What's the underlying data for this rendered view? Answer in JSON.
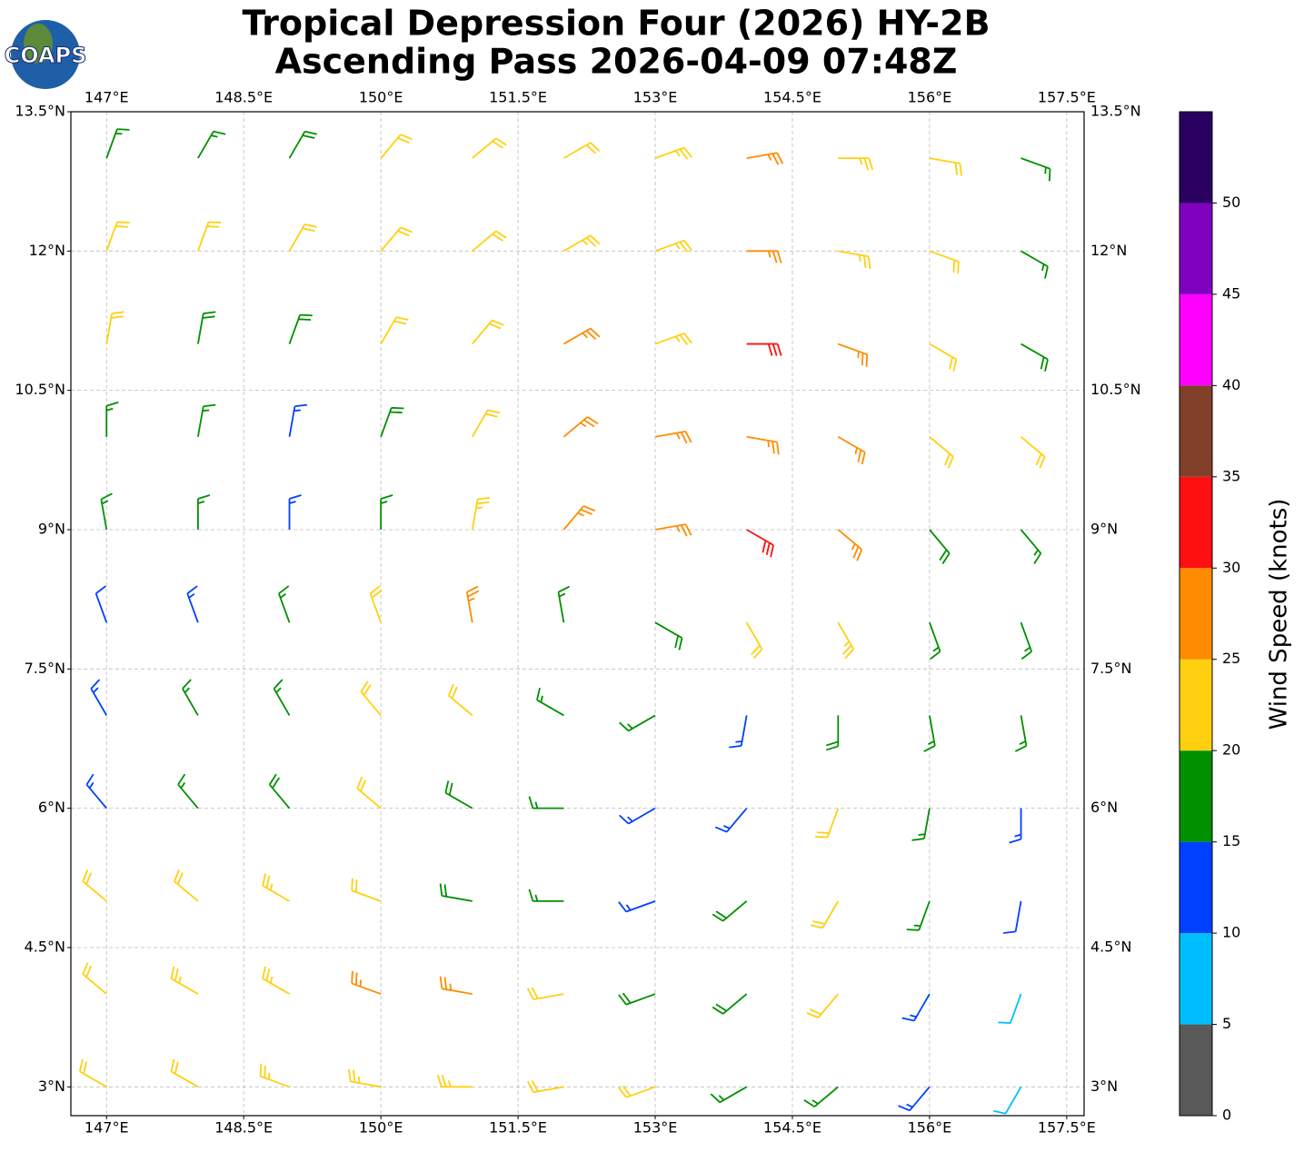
{
  "logo": "COAPS",
  "chart_data": {
    "type": "barbs",
    "title": "Tropical Depression Four (2026) HY-2B",
    "subtitle": "Ascending Pass 2026-04-09 07:48Z",
    "xlim": [
      146.61,
      157.69
    ],
    "ylim": [
      2.69,
      13.5
    ],
    "xticks": [
      {
        "value": 147,
        "label": "147°E"
      },
      {
        "value": 148.5,
        "label": "148.5°E"
      },
      {
        "value": 150,
        "label": "150°E"
      },
      {
        "value": 151.5,
        "label": "151.5°E"
      },
      {
        "value": 153,
        "label": "153°E"
      },
      {
        "value": 154.5,
        "label": "154.5°E"
      },
      {
        "value": 156,
        "label": "156°E"
      },
      {
        "value": 157.5,
        "label": "157.5°E"
      }
    ],
    "yticks": [
      {
        "value": 3,
        "label": "3°N"
      },
      {
        "value": 4.5,
        "label": "4.5°N"
      },
      {
        "value": 6,
        "label": "6°N"
      },
      {
        "value": 7.5,
        "label": "7.5°N"
      },
      {
        "value": 9,
        "label": "9°N"
      },
      {
        "value": 10.5,
        "label": "10.5°N"
      },
      {
        "value": 12,
        "label": "12°N"
      },
      {
        "value": 13.5,
        "label": "13.5°N"
      }
    ],
    "grid": true,
    "lon": [
      147,
      148,
      149,
      150,
      151,
      152,
      153,
      154,
      155,
      156,
      157
    ],
    "lat": [
      13,
      12,
      11,
      10,
      9,
      8,
      7,
      6,
      5,
      4,
      3
    ],
    "speed": [
      [
        17,
        17,
        18,
        22,
        22,
        22,
        23,
        26,
        24,
        20,
        16
      ],
      [
        22,
        21,
        20,
        22,
        22,
        23,
        24,
        26,
        24,
        20,
        17
      ],
      [
        20,
        19,
        18,
        21,
        22,
        25,
        24,
        30,
        26,
        22,
        18
      ],
      [
        17,
        16,
        14,
        19,
        22,
        27,
        26,
        25,
        27,
        22,
        21
      ],
      [
        17,
        15,
        13,
        16,
        24,
        27,
        25,
        30,
        26,
        18,
        17
      ],
      [
        12,
        14,
        15,
        20,
        25,
        17,
        18,
        20,
        23,
        17,
        16
      ],
      [
        13,
        15,
        17,
        21,
        21,
        17,
        16,
        14,
        18,
        16,
        15
      ],
      [
        14,
        17,
        19,
        22,
        18,
        16,
        13,
        14,
        20,
        17,
        13
      ],
      [
        22,
        21,
        23,
        21,
        19,
        16,
        14,
        18,
        20,
        16,
        10
      ],
      [
        22,
        23,
        24,
        27,
        25,
        22,
        19,
        18,
        21,
        13,
        8
      ],
      [
        21,
        22,
        23,
        24,
        23,
        22,
        20,
        17,
        16,
        13,
        8
      ]
    ],
    "direction": [
      [
        20,
        30,
        30,
        40,
        50,
        60,
        70,
        80,
        90,
        100,
        110
      ],
      [
        20,
        20,
        30,
        40,
        50,
        60,
        70,
        90,
        100,
        110,
        120
      ],
      [
        10,
        10,
        20,
        30,
        40,
        60,
        70,
        90,
        110,
        120,
        120
      ],
      [
        0,
        10,
        10,
        20,
        30,
        50,
        80,
        100,
        120,
        130,
        130
      ],
      [
        350,
        0,
        0,
        0,
        10,
        40,
        80,
        120,
        130,
        140,
        140
      ],
      [
        340,
        340,
        340,
        340,
        350,
        350,
        120,
        150,
        150,
        160,
        160
      ],
      [
        330,
        330,
        330,
        320,
        310,
        300,
        240,
        190,
        180,
        170,
        170
      ],
      [
        320,
        320,
        320,
        310,
        300,
        270,
        240,
        220,
        200,
        190,
        180
      ],
      [
        310,
        310,
        300,
        290,
        280,
        270,
        250,
        230,
        210,
        200,
        190
      ],
      [
        310,
        300,
        300,
        290,
        280,
        260,
        250,
        230,
        220,
        210,
        200
      ],
      [
        300,
        300,
        290,
        280,
        270,
        260,
        250,
        240,
        230,
        220,
        210
      ]
    ],
    "colorbar": {
      "label": "Wind Speed (knots)",
      "bounds": [
        0,
        5,
        10,
        15,
        20,
        25,
        30,
        35,
        40,
        45,
        50,
        55
      ],
      "colors": [
        "#595959",
        "#00bfff",
        "#0040ff",
        "#009000",
        "#ffd010",
        "#ff8c00",
        "#ff1010",
        "#80402a",
        "#ff00ff",
        "#8000c0",
        "#2a0060"
      ],
      "ticks": [
        0,
        5,
        10,
        15,
        20,
        25,
        30,
        35,
        40,
        45,
        50
      ]
    }
  }
}
